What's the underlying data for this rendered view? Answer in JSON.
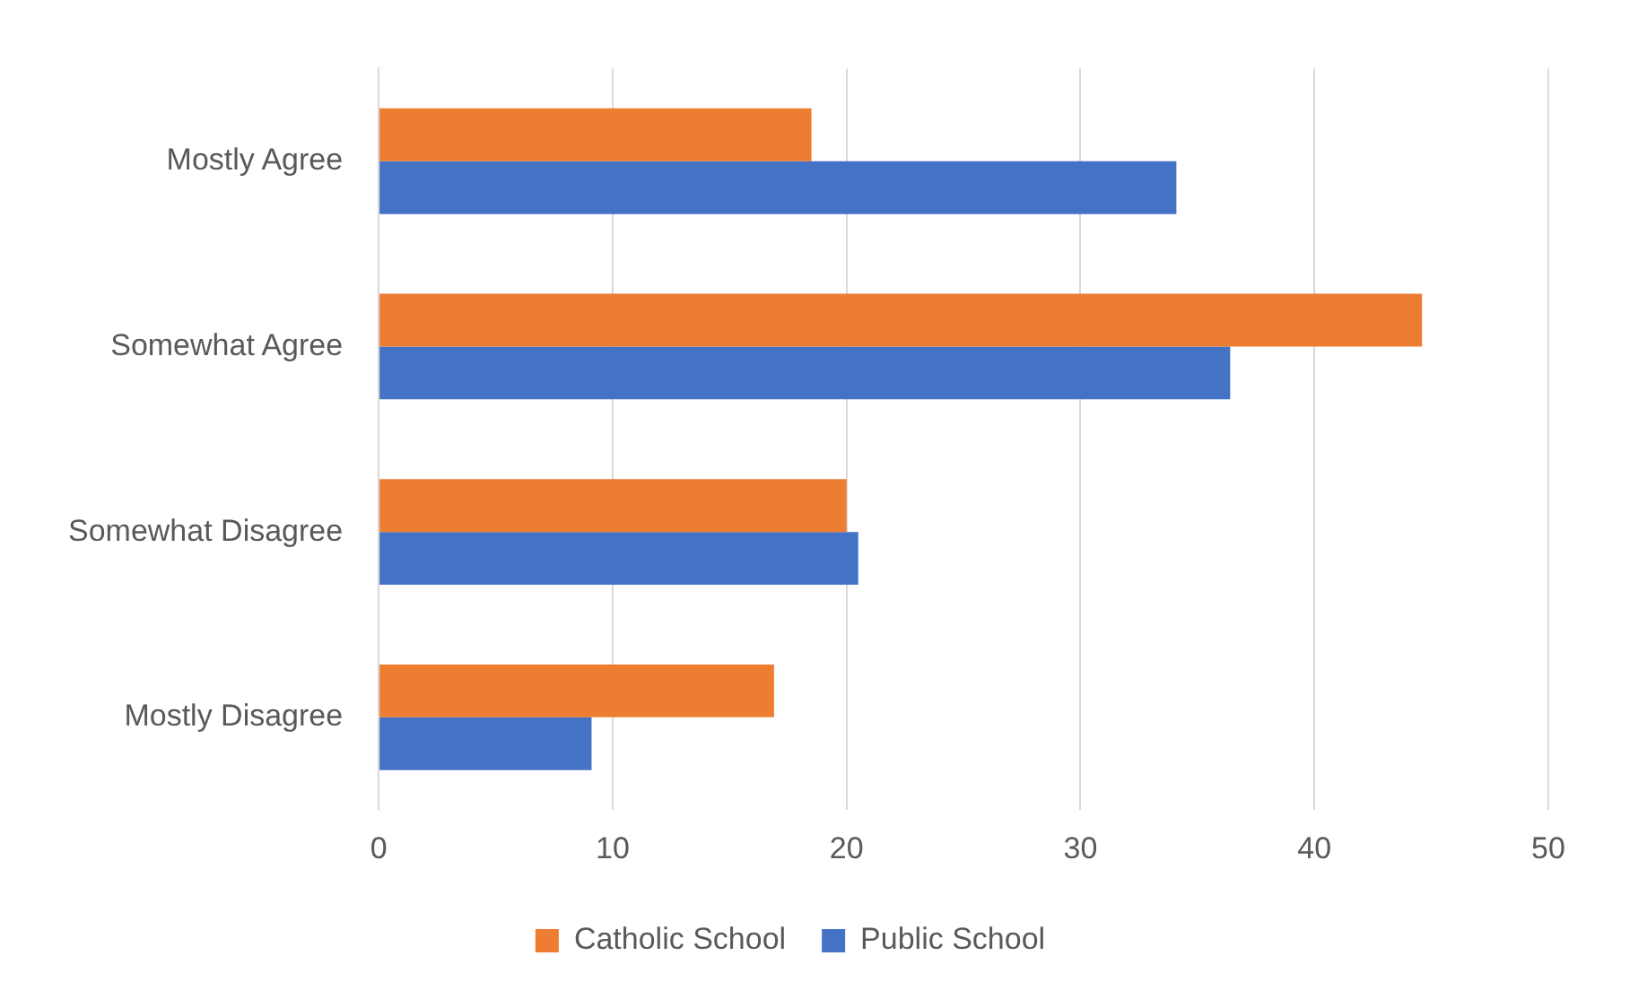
{
  "chart_data": {
    "type": "bar",
    "orientation": "horizontal",
    "categories": [
      "Mostly Agree",
      "Somewhat Agree",
      "Somewhat Disagree",
      "Mostly Disagree"
    ],
    "series": [
      {
        "name": "Catholic School",
        "color": "#ed7d31",
        "values": [
          18.5,
          44.6,
          20.0,
          16.9
        ]
      },
      {
        "name": "Public School",
        "color": "#4472c4",
        "values": [
          34.1,
          36.4,
          20.5,
          9.1
        ]
      }
    ],
    "xlim": [
      0,
      50
    ],
    "xticks": [
      0,
      10,
      20,
      30,
      40,
      50
    ],
    "grid": "x",
    "legend": "bottom"
  }
}
